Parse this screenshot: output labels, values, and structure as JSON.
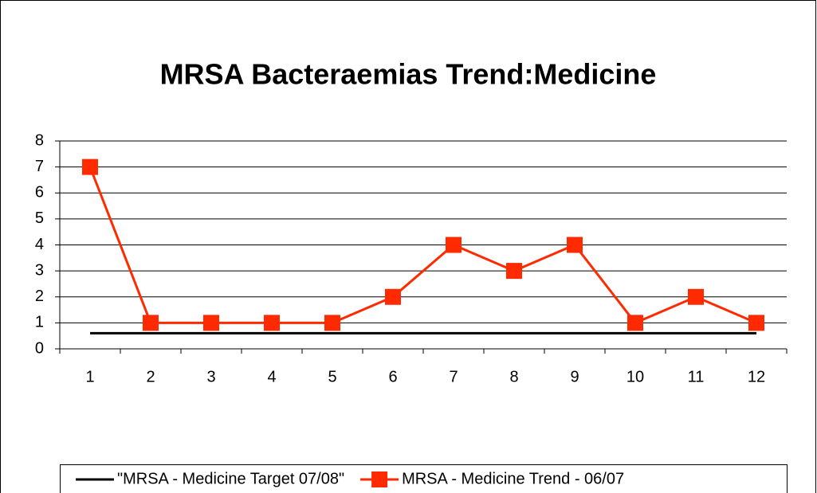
{
  "chart_data": {
    "type": "line",
    "title": "MRSA Bacteraemias Trend:Medicine",
    "categories": [
      "1",
      "2",
      "3",
      "4",
      "5",
      "6",
      "7",
      "8",
      "9",
      "10",
      "11",
      "12"
    ],
    "series": [
      {
        "name": "\"MRSA - Medicine Target 07/08\"",
        "color": "#000000",
        "marker": "none",
        "values": [
          0.6,
          0.6,
          0.6,
          0.6,
          0.6,
          0.6,
          0.6,
          0.6,
          0.6,
          0.6,
          0.6,
          0.6
        ]
      },
      {
        "name": "MRSA - Medicine Trend - 06/07",
        "color": "#ff2a00",
        "marker": "square",
        "values": [
          7,
          1,
          1,
          1,
          1,
          2,
          4,
          3,
          4,
          1,
          2,
          1
        ]
      }
    ],
    "ylim": [
      0,
      8
    ],
    "yticks": [
      0,
      1,
      2,
      3,
      4,
      5,
      6,
      7,
      8
    ],
    "grid": true,
    "legend": "bottom"
  }
}
